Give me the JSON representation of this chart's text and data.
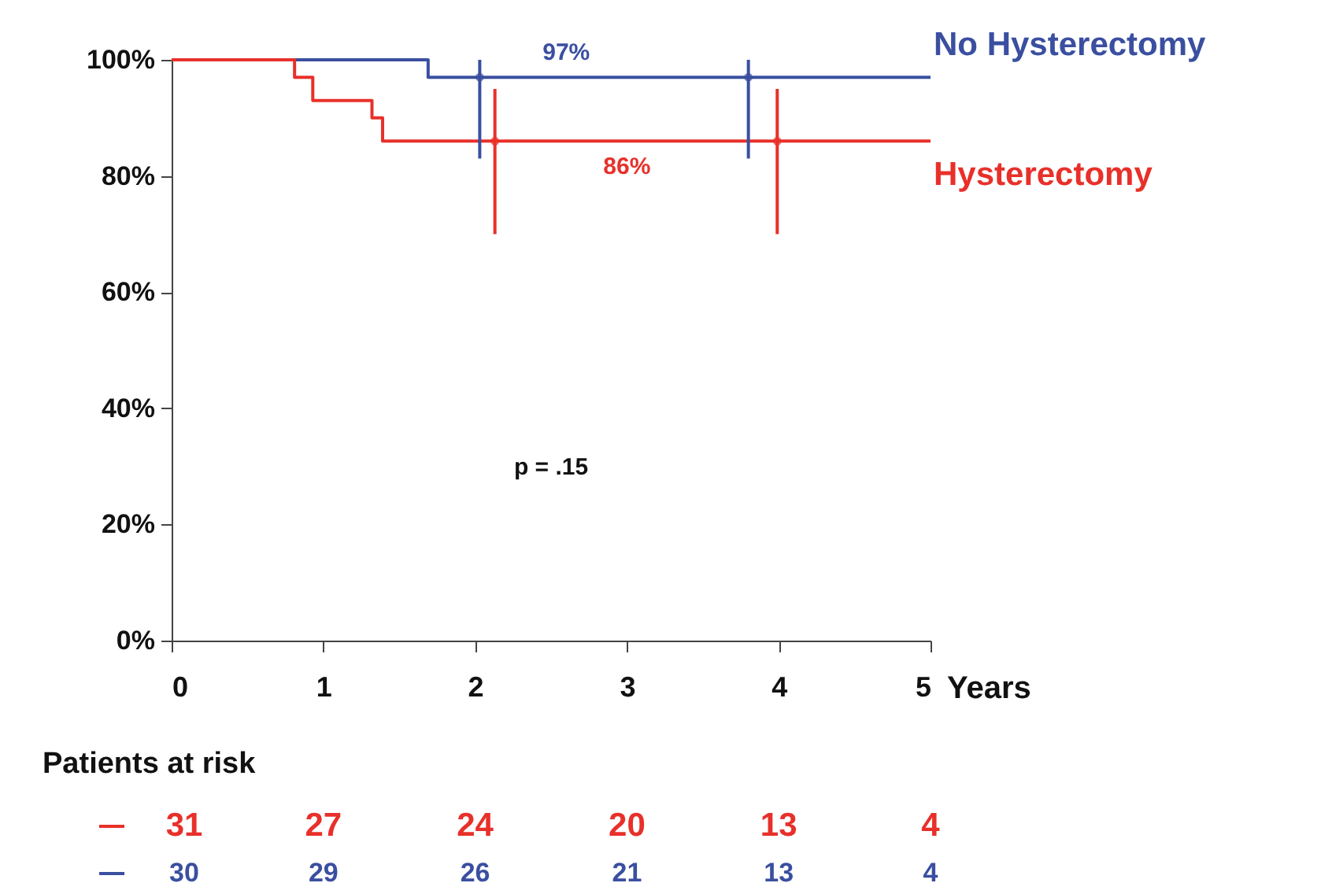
{
  "chart_data": {
    "type": "step",
    "series": [
      {
        "name": "No Hysterectomy",
        "color": "#3a4fa0",
        "x": [
          0,
          1.69,
          5
        ],
        "values": [
          100,
          97,
          97
        ]
      },
      {
        "name": "Hysterectomy",
        "color": "#e8302a",
        "x": [
          0,
          0.81,
          0.93,
          1.32,
          1.39,
          5
        ],
        "values": [
          100,
          97,
          93,
          90,
          86,
          86
        ]
      },
      {
        "type": "scatter",
        "color": "#3a4fa0",
        "x": [
          2.03,
          3.8
        ],
        "values": [
          97,
          97
        ],
        "errors": [
          [
            83,
            100
          ],
          [
            83,
            100
          ]
        ]
      },
      {
        "type": "scatter",
        "color": "#e8302a",
        "x": [
          2.13,
          3.99
        ],
        "values": [
          86,
          86
        ],
        "errors": [
          [
            70,
            95
          ],
          [
            70,
            95
          ]
        ]
      }
    ],
    "xlabel": "Years",
    "xlim": [
      0,
      5
    ],
    "xticks": [
      0,
      1,
      2,
      3,
      4,
      5
    ],
    "ylim": [
      0,
      100
    ],
    "yticks": [
      {
        "value": 0,
        "label": "0%"
      },
      {
        "value": 20,
        "label": "20%"
      },
      {
        "value": 40,
        "label": "40%"
      },
      {
        "value": 60,
        "label": "60%"
      },
      {
        "value": 80,
        "label": "80%"
      },
      {
        "value": 100,
        "label": "100%"
      }
    ],
    "grid": false,
    "legend": false,
    "annotations": [
      {
        "text": "97%",
        "x": 2.6,
        "y": 97
      },
      {
        "text": "86%",
        "x": 3.0,
        "y": 86
      },
      "p = .15",
      "Patients at risk",
      "31",
      "27",
      "24",
      "20",
      "13",
      "4",
      "30",
      "29",
      "26",
      "21",
      "13",
      "4"
    ]
  }
}
